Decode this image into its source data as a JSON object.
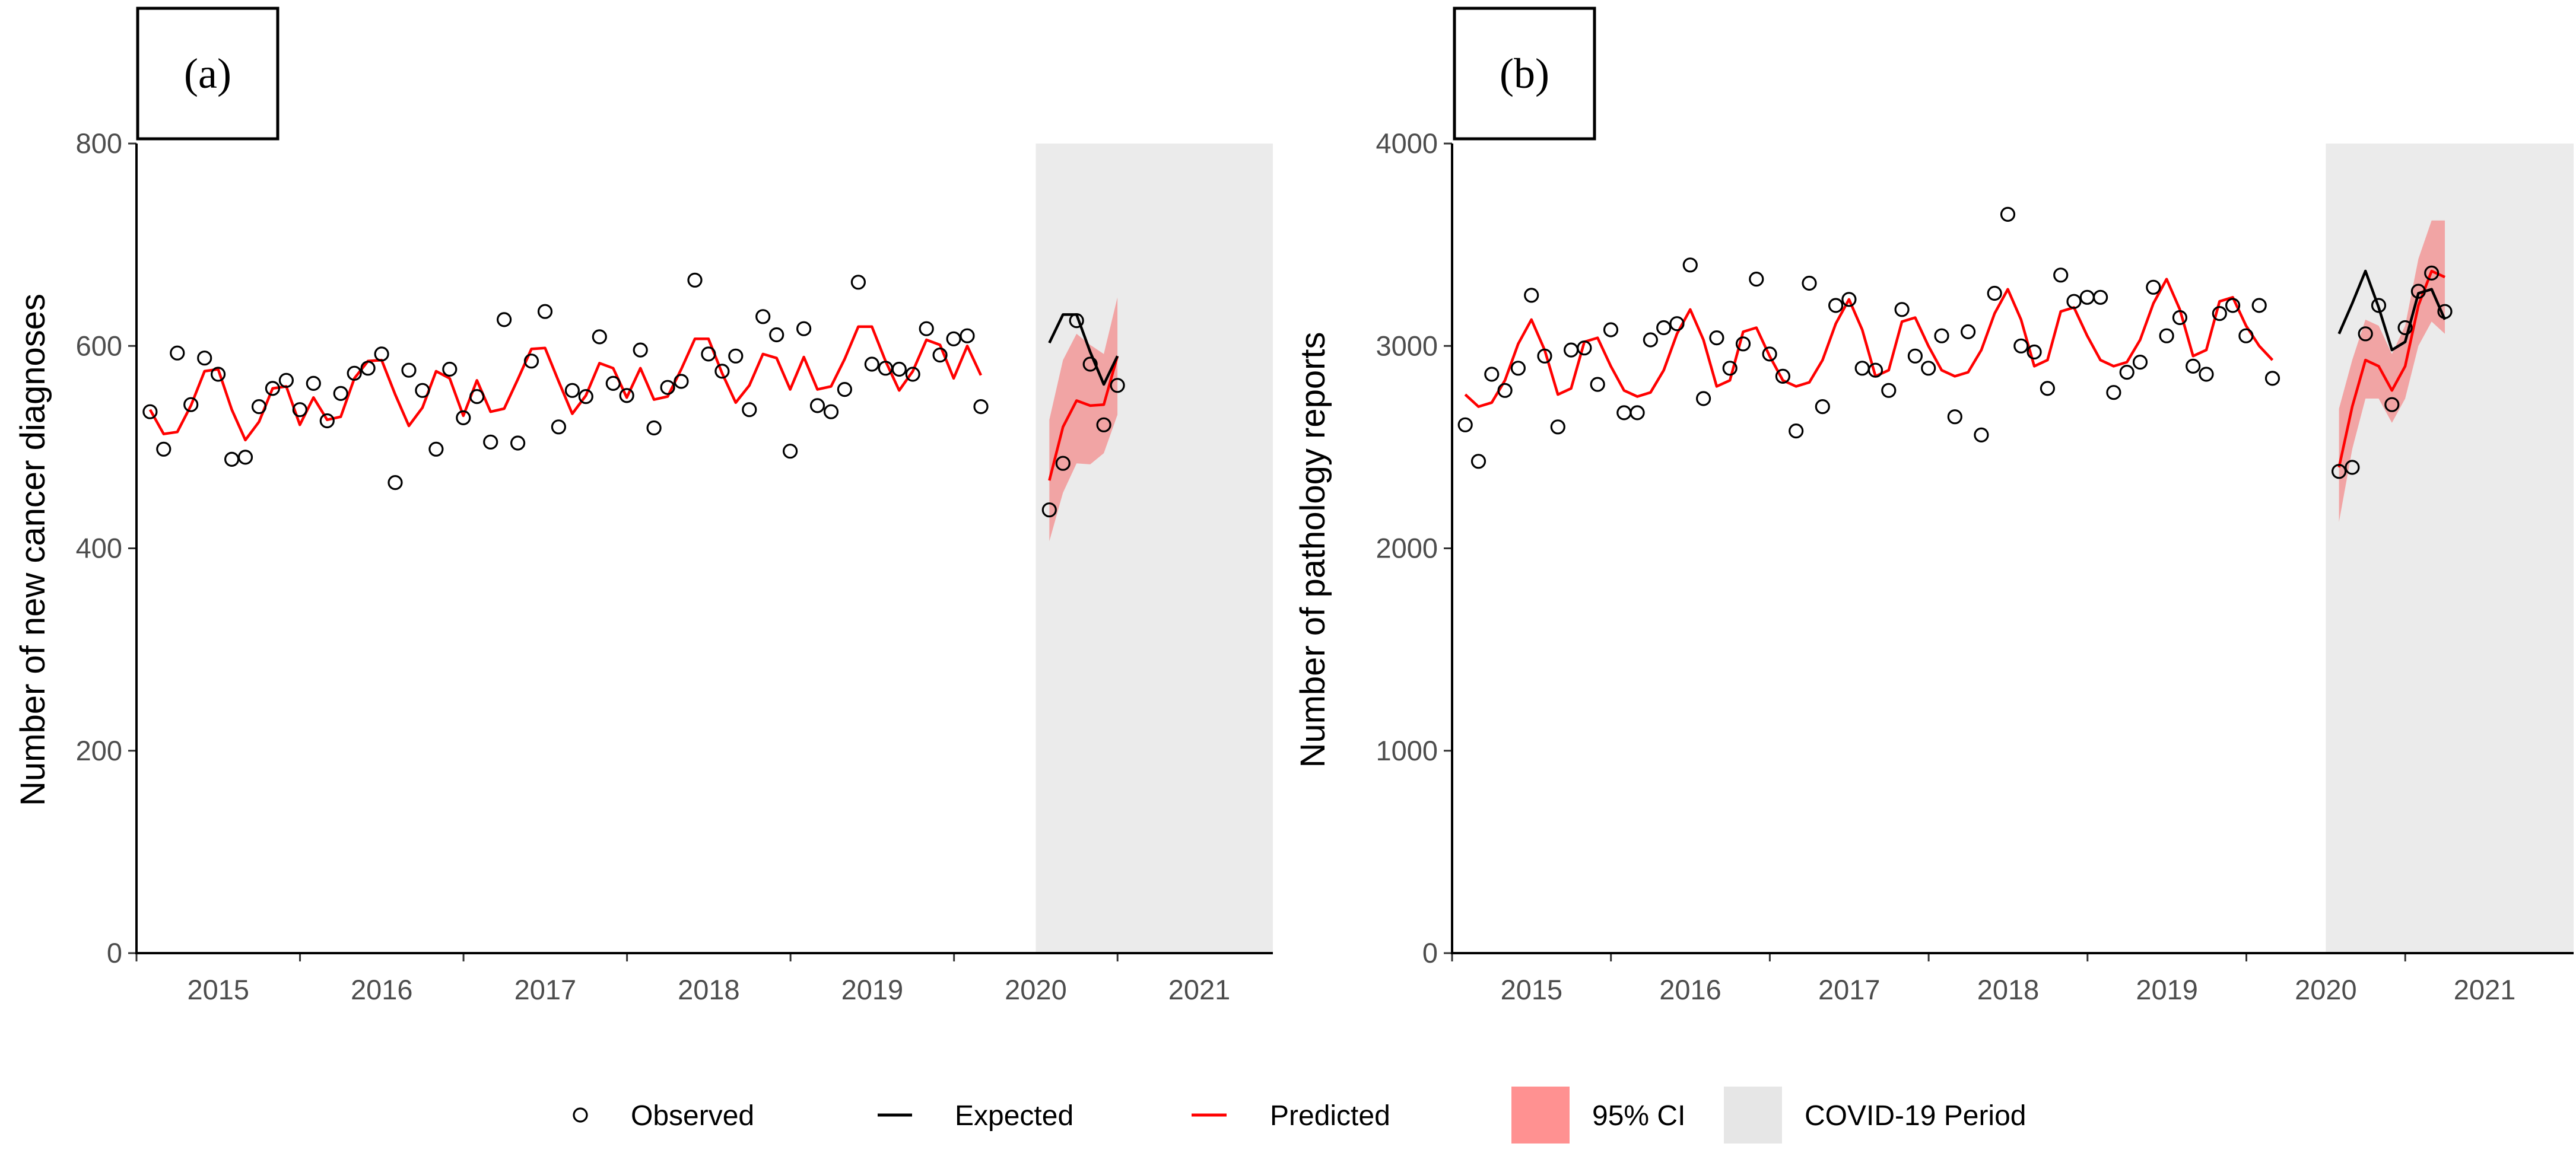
{
  "chart_data": [
    {
      "panel_label": "(a)",
      "type": "line",
      "ylabel": "Number of new cancer diagnoses",
      "xlabel": "",
      "ylim": [
        0,
        800
      ],
      "yticks": [
        0,
        200,
        400,
        600,
        800
      ],
      "xlim": [
        2014.5,
        2021.45
      ],
      "xticks": [
        2015,
        2016,
        2017,
        2018,
        2019,
        2020,
        2021
      ],
      "x_tick_labels": [
        "2015",
        "2016",
        "2017",
        "2018",
        "2019",
        "2020",
        "2021"
      ],
      "covid_period": [
        2020.0,
        2021.45
      ],
      "series": [
        {
          "name": "Observed",
          "kind": "points",
          "start": 2014.583,
          "step": 0.0833,
          "values": [
            535,
            498,
            593,
            542,
            588,
            572,
            488,
            490,
            540,
            558,
            566,
            537,
            563,
            526,
            553,
            573,
            578,
            592,
            465,
            576,
            556,
            498,
            577,
            529,
            550,
            505,
            626,
            504,
            585,
            634,
            520,
            556,
            550,
            609,
            563,
            551,
            596,
            519,
            559,
            565,
            665,
            592,
            575,
            590,
            537,
            629,
            611,
            496,
            617,
            541,
            535,
            557,
            663,
            582,
            578,
            577,
            572,
            617,
            591,
            607,
            610,
            540
          ]
        },
        {
          "name": "Observed",
          "kind": "points-covid",
          "start": 2020.083,
          "step": 0.0833,
          "values": [
            438,
            484,
            625,
            582,
            522,
            561
          ]
        },
        {
          "name": "Predicted",
          "kind": "line",
          "start": 2014.583,
          "step": 0.0833,
          "values": [
            537,
            513,
            515,
            541,
            575,
            577,
            537,
            507,
            525,
            558,
            560,
            522,
            549,
            527,
            530,
            568,
            585,
            586,
            552,
            521,
            539,
            575,
            568,
            531,
            566,
            535,
            538,
            567,
            597,
            598,
            565,
            533,
            551,
            583,
            578,
            549,
            578,
            547,
            550,
            577,
            607,
            607,
            573,
            544,
            561,
            592,
            588,
            557,
            589,
            557,
            560,
            587,
            619,
            619,
            585,
            556,
            575,
            606,
            601,
            568,
            600,
            571
          ]
        },
        {
          "name": "Predicted",
          "kind": "line-covid",
          "start": 2020.083,
          "step": 0.0833,
          "values": [
            467,
            520,
            546,
            541,
            542,
            590
          ]
        },
        {
          "name": "Expected",
          "kind": "line",
          "start": 2020.083,
          "step": 0.0833,
          "values": [
            603,
            631,
            631,
            594,
            562,
            590
          ]
        },
        {
          "name": "95% CI",
          "kind": "band",
          "start": 2020.083,
          "step": 0.0833,
          "lower": [
            407,
            455,
            484,
            483,
            494,
            532
          ],
          "upper": [
            527,
            586,
            612,
            601,
            592,
            648
          ]
        }
      ]
    },
    {
      "panel_label": "(b)",
      "type": "line",
      "ylabel": "Number of pathology reports",
      "xlabel": "",
      "ylim": [
        0,
        4000
      ],
      "yticks": [
        0,
        1000,
        2000,
        3000,
        4000
      ],
      "xlim": [
        2014.5,
        2021.56
      ],
      "xticks": [
        2015,
        2016,
        2017,
        2018,
        2019,
        2020,
        2021
      ],
      "x_tick_labels": [
        "2015",
        "2016",
        "2017",
        "2018",
        "2019",
        "2020",
        "2021"
      ],
      "covid_period": [
        2020.0,
        2021.56
      ],
      "series": [
        {
          "name": "Observed",
          "kind": "points",
          "start": 2014.583,
          "step": 0.0833,
          "values": [
            2610,
            2430,
            2860,
            2780,
            2890,
            3250,
            2950,
            2600,
            2980,
            2990,
            2810,
            3080,
            2670,
            2670,
            3030,
            3090,
            3110,
            3400,
            2740,
            3040,
            2890,
            3010,
            3330,
            2960,
            2850,
            2580,
            3310,
            2700,
            3200,
            3230,
            2890,
            2880,
            2780,
            3180,
            2950,
            2890,
            3050,
            2650,
            3070,
            2560,
            3260,
            3650,
            3000,
            2970,
            2790,
            3350,
            3220,
            3240,
            3240,
            2770,
            2870,
            2920,
            3290,
            3050,
            3140,
            2900,
            2860,
            3160,
            3200,
            3050,
            3200,
            2840
          ]
        },
        {
          "name": "Observed",
          "kind": "points-covid",
          "start": 2020.083,
          "step": 0.0833,
          "values": [
            2380,
            2400,
            3060,
            3200,
            2710,
            3090,
            3270,
            3360,
            3170
          ]
        },
        {
          "name": "Predicted",
          "kind": "line",
          "start": 2014.583,
          "step": 0.0833,
          "values": [
            2760,
            2700,
            2720,
            2830,
            3010,
            3130,
            2980,
            2760,
            2790,
            3020,
            3040,
            2900,
            2780,
            2750,
            2770,
            2880,
            3060,
            3180,
            3030,
            2800,
            2830,
            3070,
            3090,
            2950,
            2830,
            2800,
            2820,
            2930,
            3110,
            3230,
            3080,
            2850,
            2880,
            3120,
            3140,
            3000,
            2880,
            2850,
            2870,
            2980,
            3160,
            3280,
            3130,
            2900,
            2930,
            3170,
            3190,
            3050,
            2930,
            2900,
            2920,
            3030,
            3210,
            3330,
            3180,
            2950,
            2980,
            3220,
            3240,
            3100,
            3000,
            2930
          ]
        },
        {
          "name": "Predicted",
          "kind": "line-covid",
          "start": 2020.083,
          "step": 0.0833,
          "values": [
            2400,
            2700,
            2930,
            2900,
            2780,
            2900,
            3200,
            3370,
            3340
          ]
        },
        {
          "name": "Expected",
          "kind": "line",
          "start": 2020.083,
          "step": 0.0833,
          "values": [
            3060,
            3210,
            3370,
            3190,
            2980,
            3020,
            3260,
            3280,
            3130
          ]
        },
        {
          "name": "95% CI",
          "kind": "band",
          "start": 2020.083,
          "step": 0.0833,
          "lower": [
            2130,
            2490,
            2740,
            2740,
            2620,
            2740,
            3000,
            3120,
            3060
          ],
          "upper": [
            2690,
            2930,
            3130,
            3100,
            2960,
            3100,
            3430,
            3620,
            3620
          ]
        }
      ]
    }
  ],
  "legend": {
    "items": [
      {
        "key": "observed",
        "label": "Observed"
      },
      {
        "key": "expected",
        "label": "Expected"
      },
      {
        "key": "predicted",
        "label": "Predicted"
      },
      {
        "key": "ci",
        "label": "95% CI"
      },
      {
        "key": "covid",
        "label": "COVID-19 Period"
      }
    ]
  },
  "colors": {
    "predicted": "#ff0000",
    "expected": "#000000",
    "observed": "#000000",
    "ci": "#ff0000",
    "covid": "#ebebeb"
  }
}
